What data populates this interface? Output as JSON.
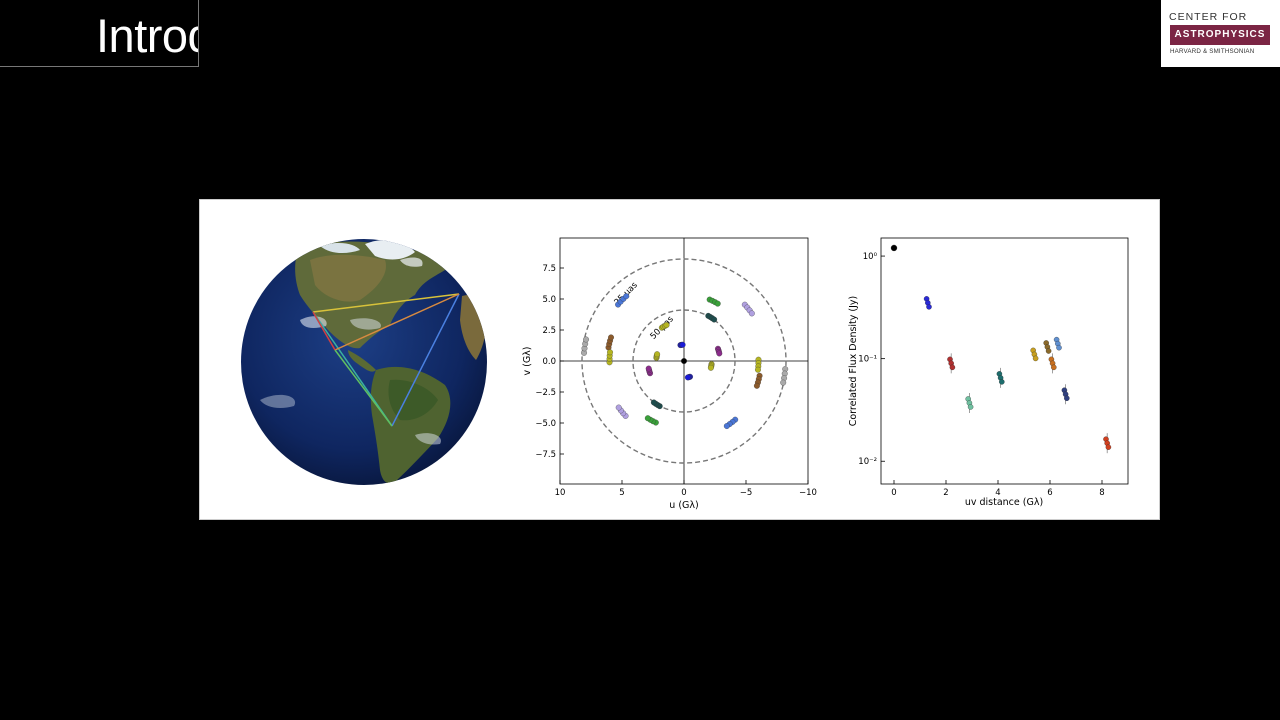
{
  "slide": {
    "title": "Introduction"
  },
  "logo": {
    "line1": "CENTER FOR",
    "line2": "ASTROPHYSICS",
    "line3": "HARVARD & SMITHSONIAN",
    "brand_color": "#7b2544"
  },
  "chart_data": [
    {
      "type": "scatter",
      "title": "",
      "xlabel": "u (Gλ)",
      "ylabel": "v (Gλ)",
      "xlim": [
        10,
        -10
      ],
      "ylim": [
        -10,
        10
      ],
      "xticks": [
        "10",
        "5",
        "0",
        "−5",
        "−10"
      ],
      "yticks": [
        "7.5",
        "5.0",
        "2.5",
        "0.0",
        "−2.5",
        "−5.0",
        "−7.5"
      ],
      "annotations": [
        "25 μas",
        "50 μas"
      ],
      "circles_radius": [
        8.25,
        4.12
      ],
      "points": [
        {
          "u": 5.0,
          "v": 4.9,
          "color": "#4a76d6"
        },
        {
          "u": 6.0,
          "v": 1.5,
          "color": "#8b5a2b"
        },
        {
          "u": 6.0,
          "v": 0.3,
          "color": "#b5b522"
        },
        {
          "u": 8.0,
          "v": 1.2,
          "color": "#aaaaaa"
        },
        {
          "u": 2.2,
          "v": 0.4,
          "color": "#b5b522"
        },
        {
          "u": 2.8,
          "v": -0.8,
          "color": "#8b2c8b"
        },
        {
          "u": 0.2,
          "v": 1.3,
          "color": "#1a1ad6"
        },
        {
          "u": 1.6,
          "v": 2.8,
          "color": "#b5b522"
        },
        {
          "u": 2.2,
          "v": -3.5,
          "color": "#1e4d4d"
        },
        {
          "u": 2.6,
          "v": -4.8,
          "color": "#3aa03a"
        },
        {
          "u": 5.0,
          "v": -4.1,
          "color": "#b0a0e0"
        },
        {
          "u": -2.4,
          "v": 4.8,
          "color": "#3aa03a"
        },
        {
          "u": -2.2,
          "v": 3.5,
          "color": "#1e4d4d"
        },
        {
          "u": -5.2,
          "v": 4.2,
          "color": "#b0a0e0"
        },
        {
          "u": -0.4,
          "v": -1.3,
          "color": "#1a1ad6"
        },
        {
          "u": -2.8,
          "v": 0.8,
          "color": "#8b2c8b"
        },
        {
          "u": -2.2,
          "v": -0.4,
          "color": "#b5b522"
        },
        {
          "u": -6.0,
          "v": -0.3,
          "color": "#b5b522"
        },
        {
          "u": -6.0,
          "v": -1.6,
          "color": "#8b5a2b"
        },
        {
          "u": -8.1,
          "v": -1.2,
          "color": "#aaaaaa"
        },
        {
          "u": -3.8,
          "v": -5.0,
          "color": "#4a76d6"
        },
        {
          "u": 0.0,
          "v": 0.0,
          "color": "#000000"
        }
      ]
    },
    {
      "type": "scatter",
      "title": "",
      "xlabel": "uv distance (Gλ)",
      "ylabel": "Correlated Flux Density (Jy)",
      "xlim": [
        -0.5,
        9
      ],
      "ylog": true,
      "ylim": [
        0.006,
        1.5
      ],
      "xticks": [
        "0",
        "2",
        "4",
        "6",
        "8"
      ],
      "yticks": [
        "10⁰",
        "10⁻¹",
        "10⁻²"
      ],
      "points": [
        {
          "x": 0.0,
          "y": 1.2,
          "color": "#000000"
        },
        {
          "x": 1.3,
          "y": 0.35,
          "color": "#2a2ad6"
        },
        {
          "x": 2.2,
          "y": 0.09,
          "color": "#b03030"
        },
        {
          "x": 2.9,
          "y": 0.037,
          "color": "#70c0a0"
        },
        {
          "x": 4.1,
          "y": 0.065,
          "color": "#1e6d6d"
        },
        {
          "x": 5.4,
          "y": 0.11,
          "color": "#c8a020"
        },
        {
          "x": 5.9,
          "y": 0.13,
          "color": "#8b6a2b"
        },
        {
          "x": 6.1,
          "y": 0.09,
          "color": "#c87020"
        },
        {
          "x": 6.3,
          "y": 0.14,
          "color": "#6090d0"
        },
        {
          "x": 6.6,
          "y": 0.045,
          "color": "#304080"
        },
        {
          "x": 8.2,
          "y": 0.015,
          "color": "#d04020"
        }
      ]
    }
  ]
}
